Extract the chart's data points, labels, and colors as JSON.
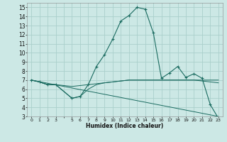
{
  "xlabel": "Humidex (Indice chaleur)",
  "bg_color": "#cce8e5",
  "line_color": "#1a6b60",
  "grid_color": "#aacfcb",
  "xlim": [
    -0.5,
    23.5
  ],
  "ylim": [
    3,
    15.5
  ],
  "yticks": [
    3,
    4,
    5,
    6,
    7,
    8,
    9,
    10,
    11,
    12,
    13,
    14,
    15
  ],
  "line1_x": [
    0,
    1,
    2,
    3,
    5,
    6,
    7,
    8,
    9,
    10,
    11,
    12,
    13,
    14,
    15,
    16,
    17,
    18,
    19,
    20,
    21,
    22,
    23
  ],
  "line1_y": [
    7.0,
    6.8,
    6.5,
    6.5,
    5.0,
    5.2,
    6.5,
    8.5,
    9.8,
    11.5,
    13.5,
    14.1,
    15.0,
    14.8,
    12.2,
    7.2,
    7.8,
    8.5,
    7.3,
    7.7,
    7.2,
    4.3,
    2.8
  ],
  "line2_x": [
    0,
    1,
    2,
    3,
    5,
    6,
    7,
    8,
    9,
    10,
    11,
    12,
    13,
    14,
    15,
    16,
    17,
    18,
    19,
    20,
    21,
    22,
    23
  ],
  "line2_y": [
    7.0,
    6.8,
    6.5,
    6.5,
    6.3,
    6.4,
    6.5,
    6.6,
    6.7,
    6.8,
    6.9,
    7.0,
    7.0,
    7.0,
    7.0,
    7.0,
    7.0,
    7.0,
    7.0,
    7.0,
    7.0,
    7.0,
    7.0
  ],
  "line3_x": [
    0,
    1,
    2,
    3,
    5,
    6,
    7,
    8,
    9,
    10,
    11,
    12,
    13,
    14,
    15,
    16,
    17,
    18,
    19,
    20,
    21,
    22,
    23
  ],
  "line3_y": [
    7.0,
    6.8,
    6.5,
    6.5,
    5.0,
    5.2,
    6.0,
    6.5,
    6.7,
    6.8,
    6.9,
    7.0,
    7.0,
    7.0,
    7.0,
    7.0,
    7.0,
    7.0,
    7.0,
    7.0,
    6.9,
    6.8,
    6.7
  ],
  "line4_x": [
    0,
    23
  ],
  "line4_y": [
    7.0,
    3.0
  ]
}
